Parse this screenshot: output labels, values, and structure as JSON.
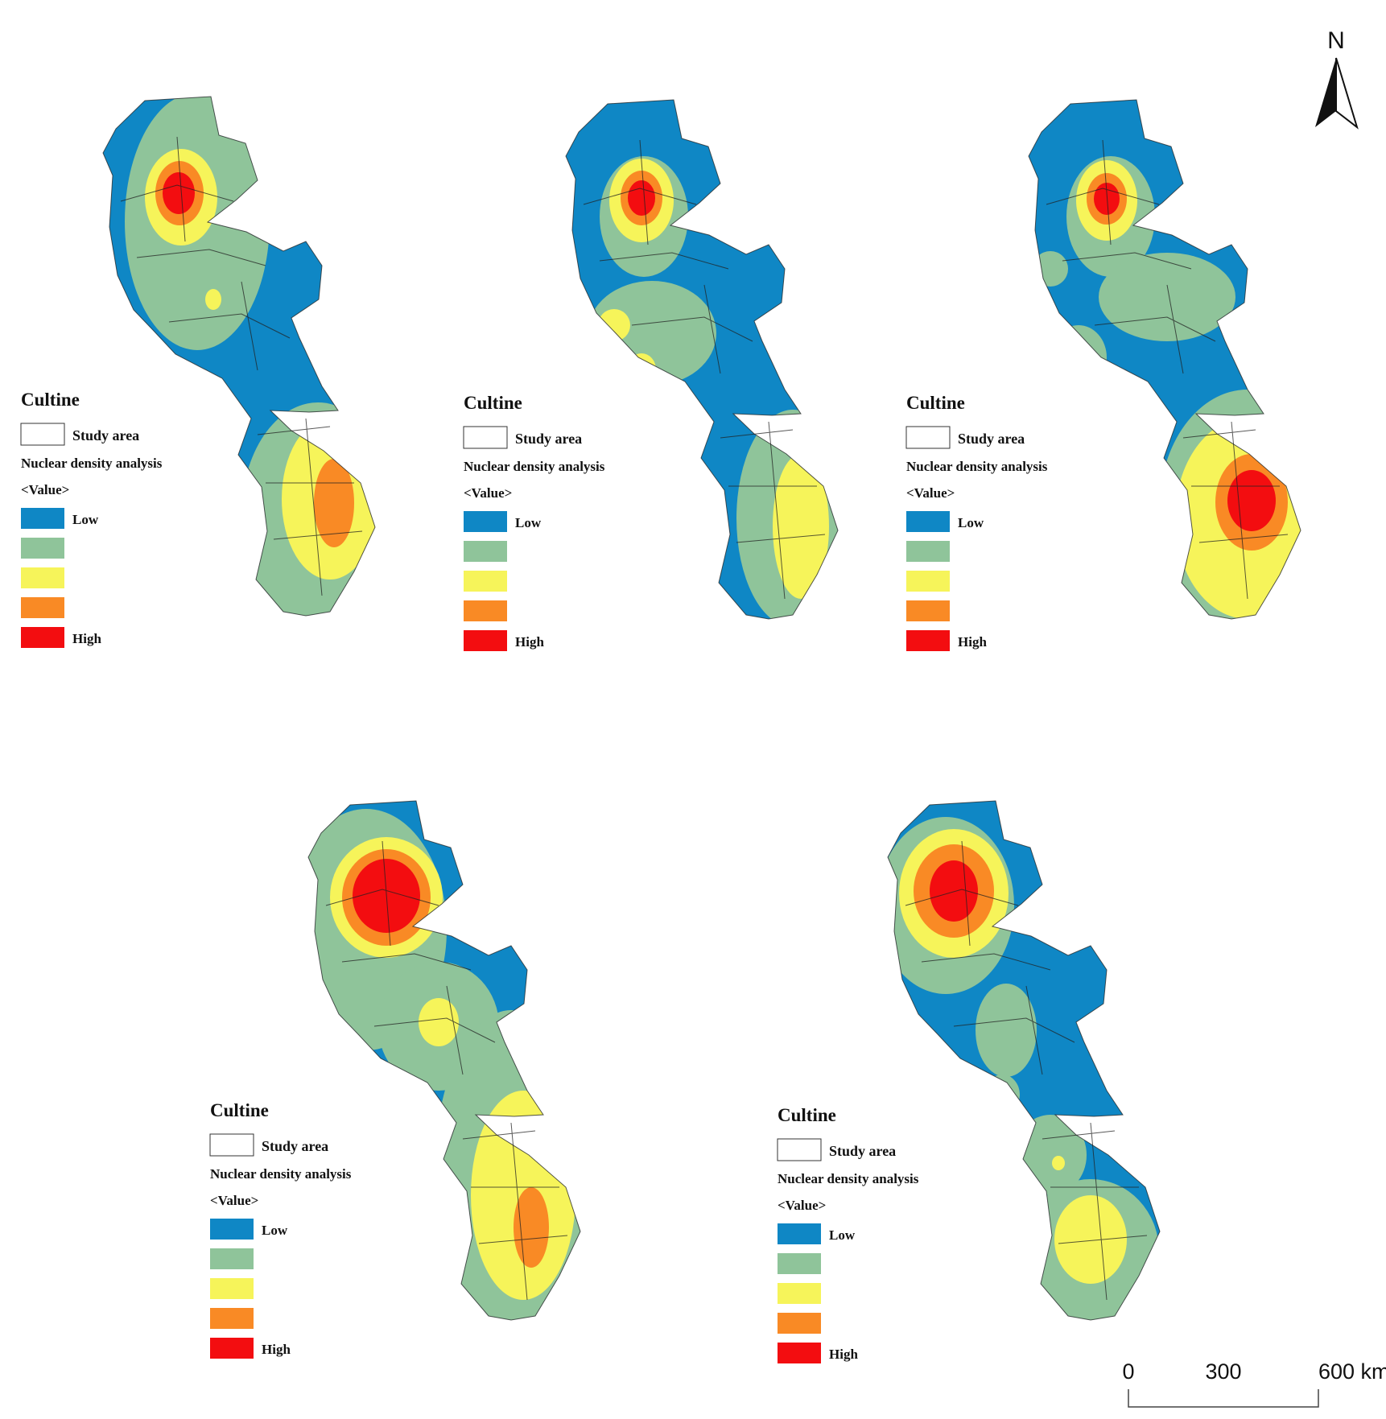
{
  "colors": {
    "low": "#0f87c5",
    "lowmid": "#8fc49a",
    "mid": "#f6f45a",
    "midhigh": "#f98a25",
    "high": "#f30d10",
    "outline": "#222222"
  },
  "maps": [
    {
      "legend": {
        "title": "Cultine",
        "study_area": "Study area",
        "analysis": "Nuclear density analysis",
        "value": "<Value>",
        "low": "Low",
        "high": "High"
      }
    },
    {
      "legend": {
        "title": "Cultine",
        "study_area": "Study area",
        "analysis": "Nuclear density analysis",
        "value": "<Value>",
        "low": "Low",
        "high": "High"
      }
    },
    {
      "legend": {
        "title": "Cultine",
        "study_area": "Study area",
        "analysis": "Nuclear density analysis",
        "value": "<Value>",
        "low": "Low",
        "high": "High"
      }
    },
    {
      "legend": {
        "title": "Cultine",
        "study_area": "Study area",
        "analysis": "Nuclear density analysis",
        "value": "<Value>",
        "low": "Low",
        "high": "High"
      }
    },
    {
      "legend": {
        "title": "Cultine",
        "study_area": "Study area",
        "analysis": "Nuclear density analysis",
        "value": "<Value>",
        "low": "Low",
        "high": "High"
      }
    }
  ],
  "north_arrow": {
    "label": "N"
  },
  "scale_bar": {
    "ticks": [
      "0",
      "300",
      "600 km"
    ]
  }
}
